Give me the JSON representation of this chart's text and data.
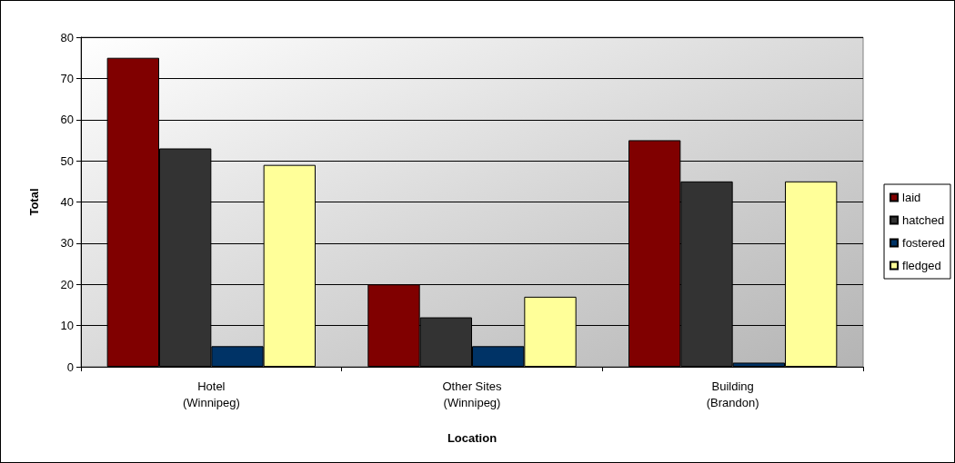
{
  "chart_data": {
    "type": "bar",
    "xlabel": "Location",
    "ylabel": "Total",
    "categories": [
      "Hotel\n(Winnipeg)",
      "Other Sites\n(Winnipeg)",
      "Building\n(Brandon)"
    ],
    "series": [
      {
        "name": "laid",
        "color": "#800000",
        "values": [
          75,
          20,
          55
        ]
      },
      {
        "name": "hatched",
        "color": "#333333",
        "values": [
          53,
          12,
          45
        ]
      },
      {
        "name": "fostered",
        "color": "#003366",
        "values": [
          5,
          5,
          1
        ]
      },
      {
        "name": "fledged",
        "color": "#ffff99",
        "values": [
          49,
          17,
          45
        ]
      }
    ],
    "ylim": [
      0,
      80
    ],
    "yticks": [
      0,
      10,
      20,
      30,
      40,
      50,
      60,
      70,
      80
    ],
    "grid": "y",
    "legend": "right"
  }
}
